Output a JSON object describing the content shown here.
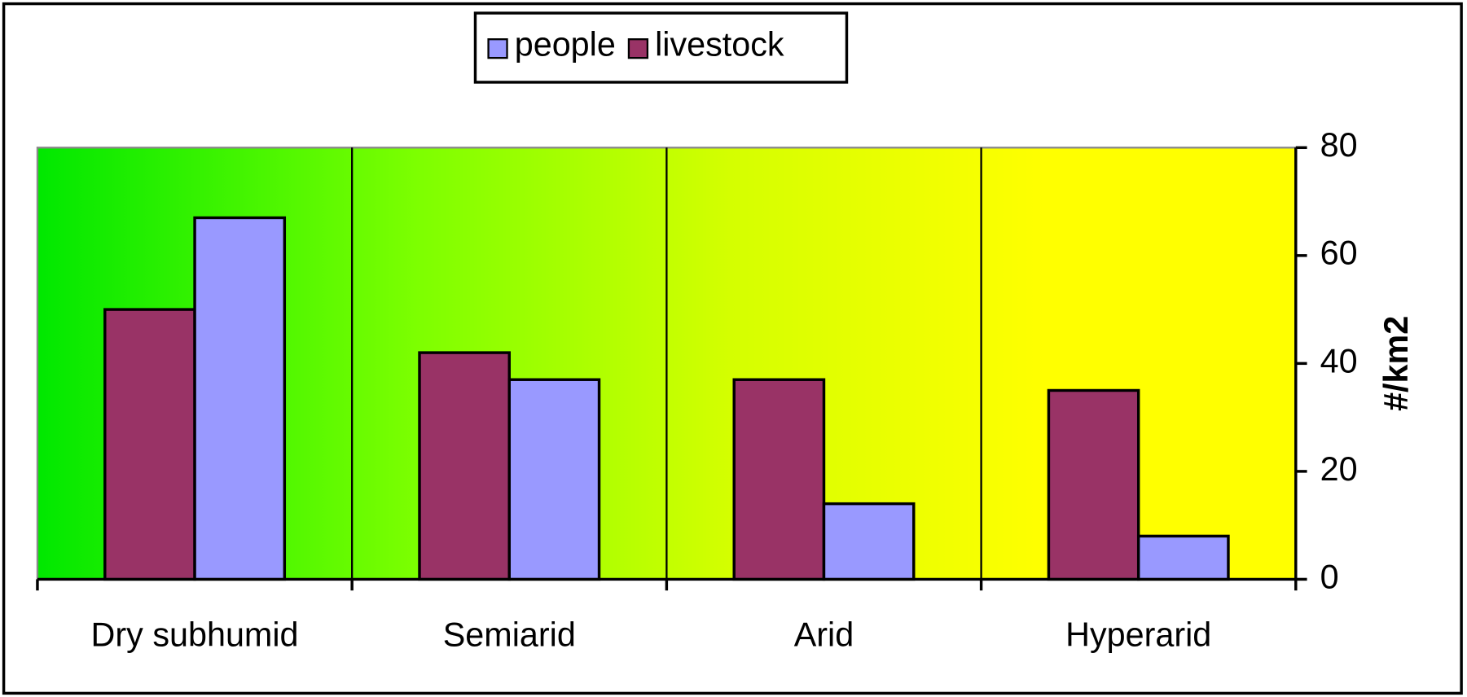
{
  "chart_data": {
    "type": "bar",
    "categories": [
      "Dry subhumid",
      "Semiarid",
      "Arid",
      "Hyperarid"
    ],
    "series": [
      {
        "name": "people",
        "color": "#9999ff",
        "values": [
          67,
          37,
          14,
          8
        ]
      },
      {
        "name": "livestock",
        "color": "#993366",
        "values": [
          50,
          42,
          37,
          35
        ]
      }
    ],
    "y_label": "#/km2",
    "ylim": [
      0,
      80
    ],
    "yticks": [
      0,
      20,
      40,
      60,
      80
    ],
    "y_axis_side": "right",
    "legend": "top"
  }
}
